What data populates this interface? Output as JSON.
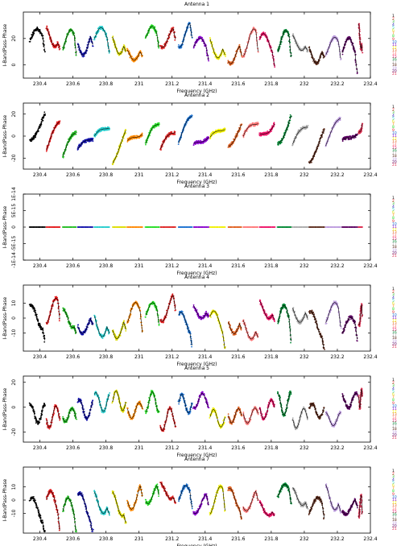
{
  "chart_data": [
    {
      "type": "scatter",
      "title": "Antenna 1",
      "xlabel": "Frequency (GHz)",
      "ylabel": "I-BandPass-Phase",
      "xlim": [
        230.3,
        232.4
      ],
      "ylim": [
        -10,
        40
      ],
      "xticks": [
        230.4,
        230.6,
        230.8,
        231,
        231.2,
        231.4,
        231.6,
        231.8,
        232,
        232.2,
        232.4
      ],
      "yticks": [
        0,
        20
      ],
      "mode": "mixed"
    },
    {
      "type": "scatter",
      "title": "Antenna 2",
      "xlabel": "Frequency (GHz)",
      "ylabel": "I-BandPass-Phase",
      "xlim": [
        230.3,
        232.4
      ],
      "ylim": [
        -30,
        30
      ],
      "xticks": [
        230.4,
        230.6,
        230.8,
        231,
        231.2,
        231.4,
        231.6,
        231.8,
        232,
        232.2,
        232.4
      ],
      "yticks": [
        -20,
        0,
        20
      ],
      "mode": "ramp"
    },
    {
      "type": "scatter",
      "title": "Antenna 3",
      "xlabel": "Frequency (GHz)",
      "ylabel": "I-BandPass-Phase",
      "xlim": [
        230.3,
        232.4
      ],
      "ylim": [
        -1e-14,
        1e-14
      ],
      "xticks": [
        230.4,
        230.6,
        230.8,
        231,
        231.2,
        231.4,
        231.6,
        231.8,
        232,
        232.2,
        232.4
      ],
      "yticks": [
        -1e-14,
        -5e-15,
        0,
        5e-15,
        1e-14
      ],
      "ytick_labels": [
        "-1E-14",
        "-5E-15",
        "0",
        "5E-15",
        "1E-14"
      ],
      "mode": "flat"
    },
    {
      "type": "scatter",
      "title": "Antenna 4",
      "xlabel": "Frequency (GHz)",
      "ylabel": "I-BandPass-Phase",
      "xlim": [
        230.3,
        232.4
      ],
      "ylim": [
        -22,
        22
      ],
      "xticks": [
        230.4,
        230.6,
        230.8,
        231,
        231.2,
        231.4,
        231.6,
        231.8,
        232,
        232.2,
        232.4
      ],
      "yticks": [
        -10,
        0,
        10
      ],
      "mode": "mixed"
    },
    {
      "type": "scatter",
      "title": "Antenna 5",
      "xlabel": "Frequency (GHz)",
      "ylabel": "I-BandPass-Phase",
      "xlim": [
        230.3,
        232.4
      ],
      "ylim": [
        -28,
        25
      ],
      "xticks": [
        230.4,
        230.6,
        230.8,
        231,
        231.2,
        231.4,
        231.6,
        231.8,
        232,
        232.2,
        232.4
      ],
      "yticks": [
        -20,
        0,
        20
      ],
      "mode": "wavy"
    },
    {
      "type": "scatter",
      "title": "Antenna 7",
      "xlabel": "Frequency (GHz)",
      "ylabel": "I-BandPass-Phase",
      "xlim": [
        230.3,
        232.4
      ],
      "ylim": [
        -25,
        25
      ],
      "xticks": [
        230.4,
        230.6,
        230.8,
        231,
        231.2,
        231.4,
        231.6,
        231.8,
        232,
        232.2,
        232.4
      ],
      "yticks": [
        -10,
        0,
        10
      ],
      "mode": "mixed"
    }
  ],
  "spw_colors": [
    "#000000",
    "#e41a1c",
    "#22bb22",
    "#1010aa",
    "#22cccc",
    "#dddd00",
    "#ff8800",
    "#22dd22",
    "#dd2222",
    "#1a70d0",
    "#8800cc",
    "#f0f000",
    "#e06020",
    "#ff7777",
    "#ee1166",
    "#008833",
    "#aaaaaa",
    "#5a2a1a",
    "#bb99dd",
    "#5a0060",
    "#dd3355"
  ],
  "spw_ranges": [
    [
      230.34,
      230.43
    ],
    [
      230.44,
      230.52
    ],
    [
      230.54,
      230.62
    ],
    [
      230.63,
      230.72
    ],
    [
      230.73,
      230.82
    ],
    [
      230.84,
      230.92
    ],
    [
      230.93,
      231.02
    ],
    [
      231.04,
      231.12
    ],
    [
      231.13,
      231.22
    ],
    [
      231.24,
      231.32
    ],
    [
      231.33,
      231.42
    ],
    [
      231.43,
      231.52
    ],
    [
      231.54,
      231.62
    ],
    [
      231.63,
      231.72
    ],
    [
      231.73,
      231.82
    ],
    [
      231.84,
      231.92
    ],
    [
      231.93,
      232.02
    ],
    [
      232.03,
      232.12
    ],
    [
      232.13,
      232.22
    ],
    [
      232.23,
      232.32
    ],
    [
      232.33,
      232.35
    ]
  ],
  "legend_labels": [
    "1",
    "2",
    "3",
    "4",
    "5",
    "6",
    "7",
    "8",
    "9",
    "10",
    "11",
    "12",
    "13",
    "14",
    "15",
    "16",
    "17",
    "18",
    "19",
    "20",
    "21"
  ]
}
